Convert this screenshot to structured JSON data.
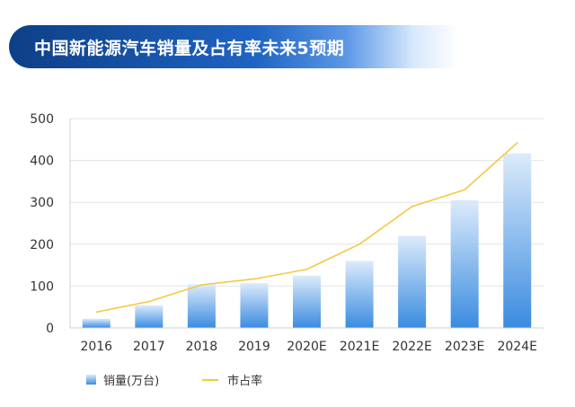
{
  "title": "中国新能源汽车销量及占有率未来5预期",
  "chart_data": {
    "type": "bar",
    "categories": [
      "2016",
      "2017",
      "2018",
      "2019",
      "2020E",
      "2021E",
      "2022E",
      "2023E",
      "2024E"
    ],
    "series": [
      {
        "name": "销量(万台)",
        "type": "bar",
        "values": [
          22,
          54,
          104,
          107,
          125,
          160,
          220,
          305,
          417
        ],
        "color": "#3b8de0"
      },
      {
        "name": "市占率",
        "type": "line",
        "values": [
          38,
          63,
          103,
          117,
          140,
          200,
          290,
          330,
          442
        ],
        "color": "#f5c842"
      }
    ],
    "ylim": [
      0,
      500
    ],
    "yticks": [
      0,
      100,
      200,
      300,
      400,
      500
    ],
    "grid": true,
    "legend": "bottom-left"
  },
  "legend": {
    "bar_label": "销量(万台)",
    "line_label": "市占率"
  }
}
